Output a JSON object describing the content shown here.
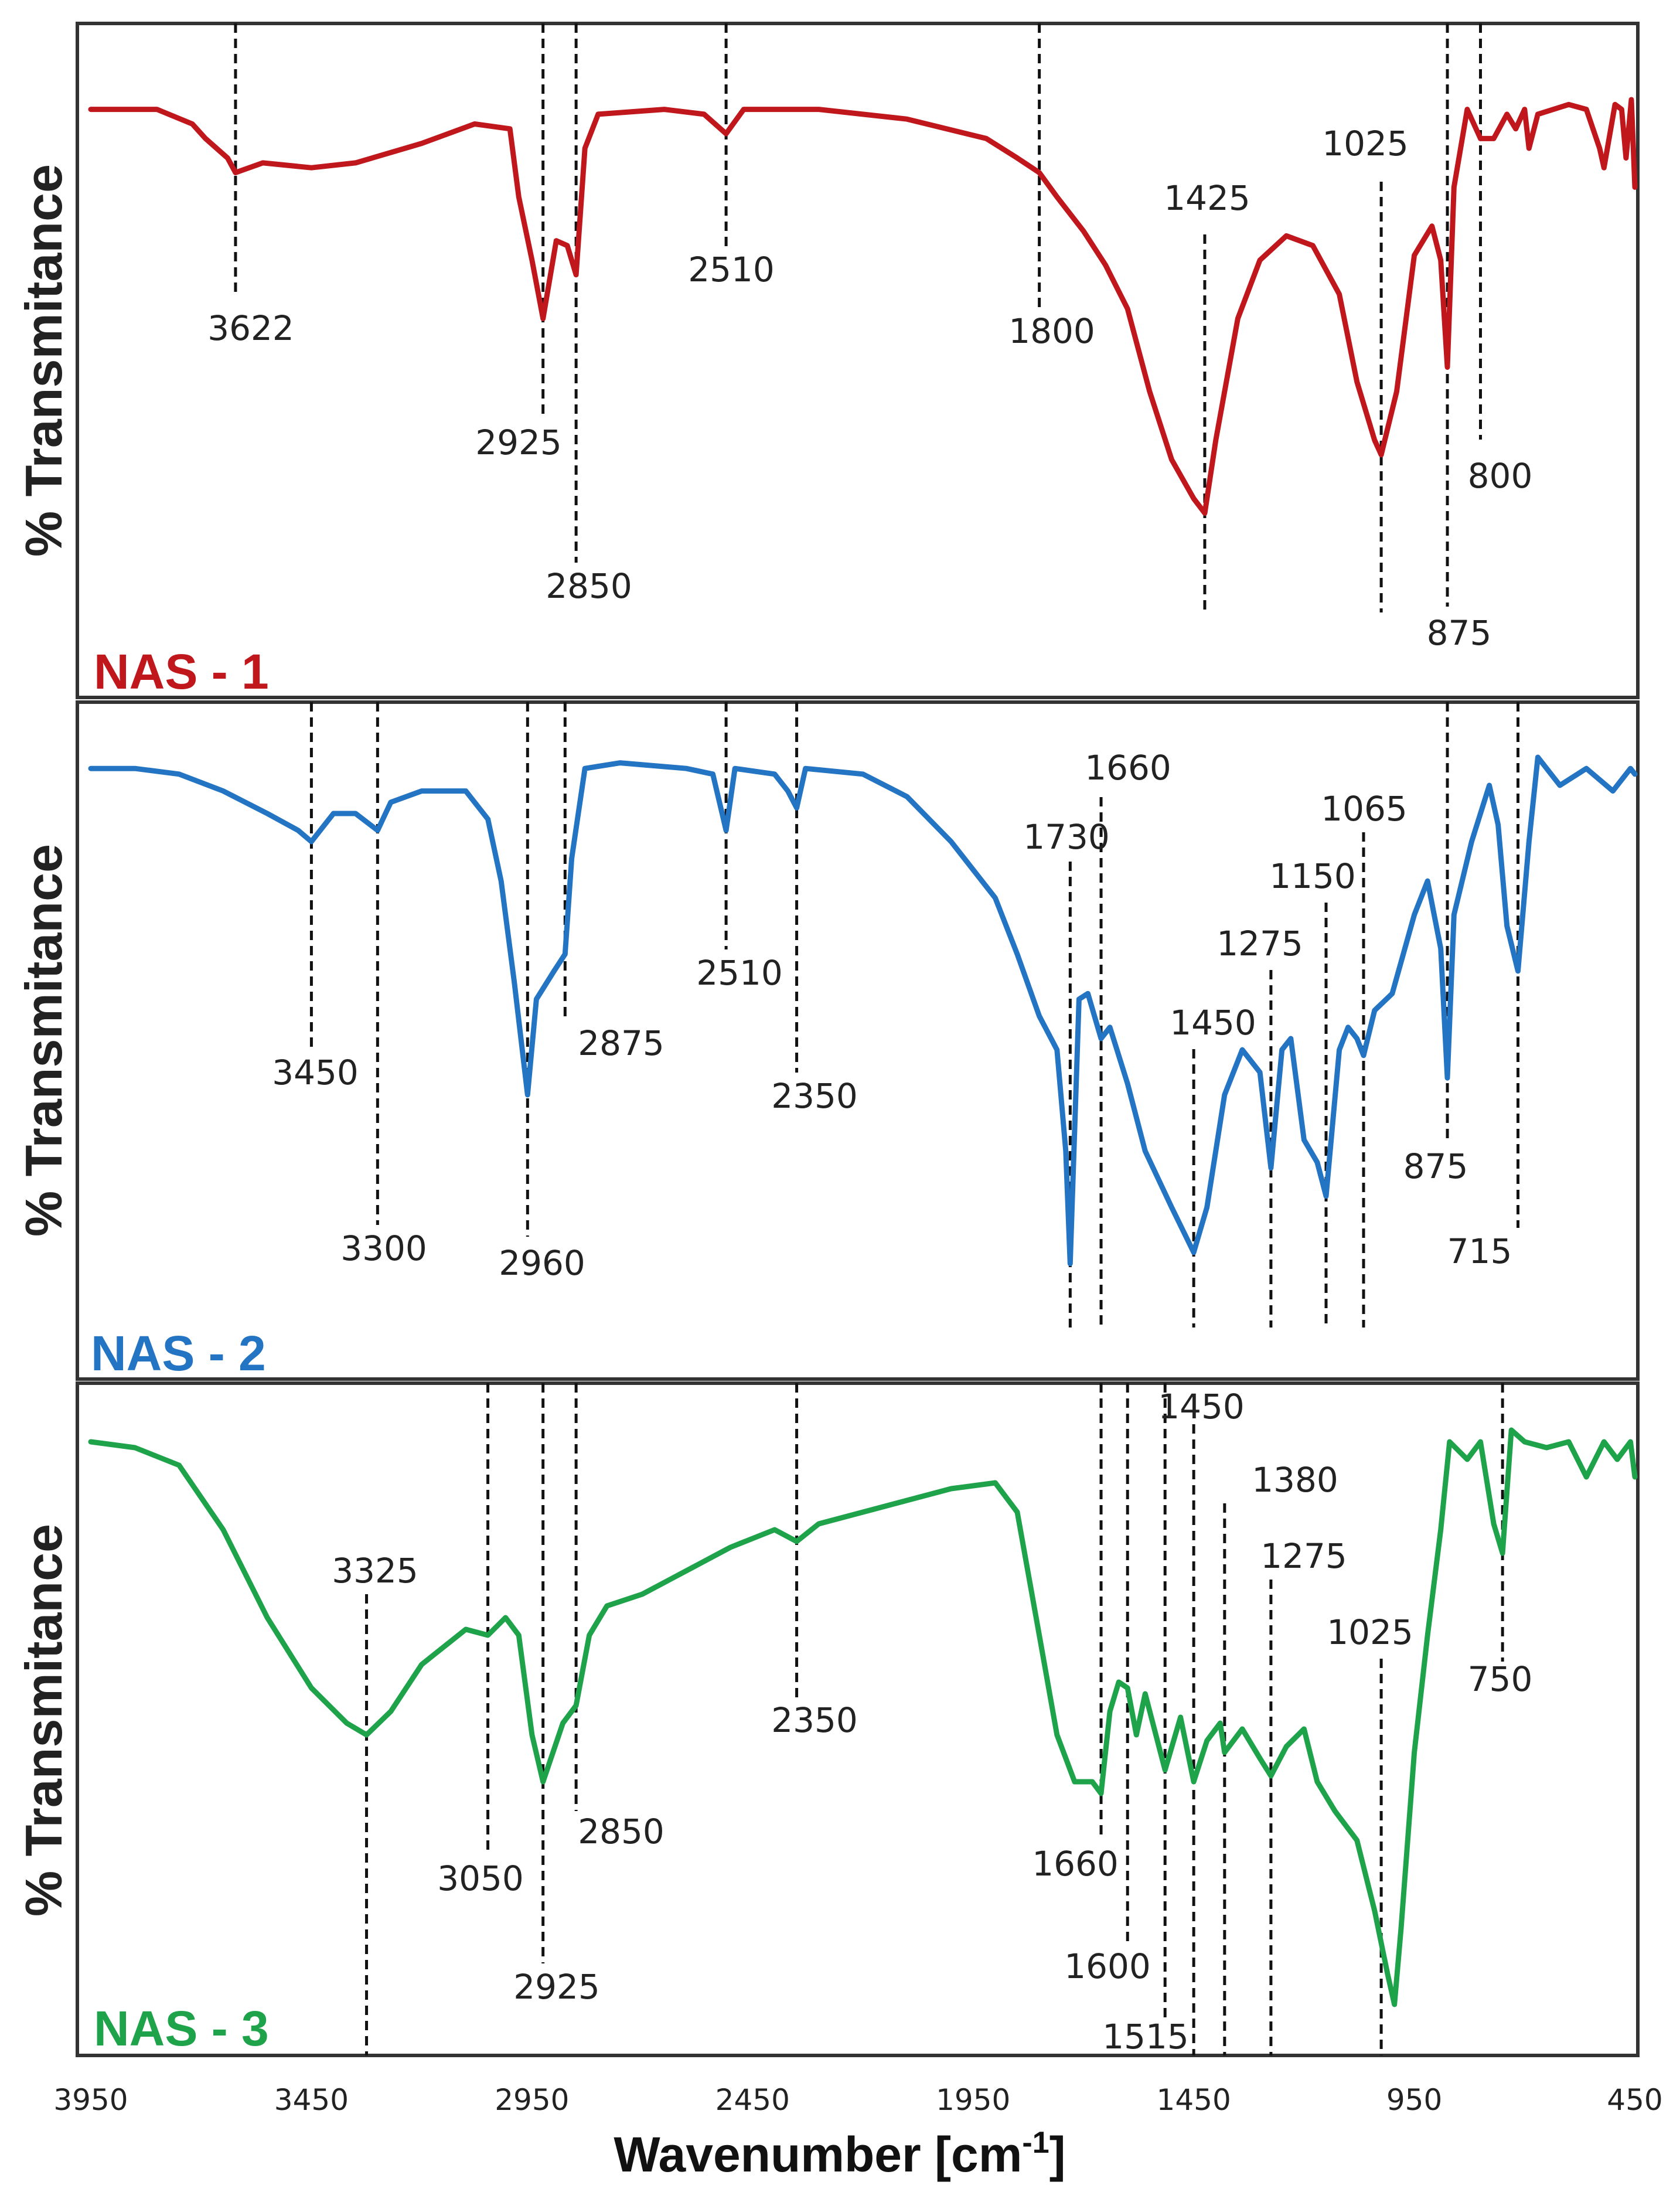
{
  "chart_data": {
    "type": "line",
    "xlabel": "Wavenumber [cm-1]",
    "xlabel_main": "Wavenumber [cm",
    "xlabel_sup": "-1",
    "xlabel_close": "]",
    "ylabel": "% Transmitance",
    "xlim": [
      3950,
      450
    ],
    "x_ticks": [
      "3950",
      "3450",
      "2950",
      "2450",
      "1950",
      "1450",
      "950",
      "450"
    ],
    "series": [
      {
        "name": "NAS - 1",
        "color": "#c0171c",
        "points": [
          [
            3950,
            0.02
          ],
          [
            3800,
            0.02
          ],
          [
            3720,
            0.05
          ],
          [
            3690,
            0.08
          ],
          [
            3640,
            0.12
          ],
          [
            3622,
            0.15
          ],
          [
            3560,
            0.13
          ],
          [
            3450,
            0.14
          ],
          [
            3350,
            0.13
          ],
          [
            3200,
            0.09
          ],
          [
            3080,
            0.05
          ],
          [
            3000,
            0.06
          ],
          [
            2980,
            0.2
          ],
          [
            2950,
            0.33
          ],
          [
            2925,
            0.45
          ],
          [
            2895,
            0.29
          ],
          [
            2870,
            0.3
          ],
          [
            2850,
            0.36
          ],
          [
            2830,
            0.1
          ],
          [
            2800,
            0.03
          ],
          [
            2650,
            0.02
          ],
          [
            2560,
            0.03
          ],
          [
            2510,
            0.07
          ],
          [
            2470,
            0.02
          ],
          [
            2300,
            0.02
          ],
          [
            2100,
            0.04
          ],
          [
            1920,
            0.08
          ],
          [
            1850,
            0.12
          ],
          [
            1800,
            0.15
          ],
          [
            1760,
            0.2
          ],
          [
            1700,
            0.27
          ],
          [
            1650,
            0.34
          ],
          [
            1600,
            0.43
          ],
          [
            1550,
            0.6
          ],
          [
            1500,
            0.74
          ],
          [
            1450,
            0.82
          ],
          [
            1425,
            0.85
          ],
          [
            1400,
            0.7
          ],
          [
            1350,
            0.45
          ],
          [
            1300,
            0.33
          ],
          [
            1240,
            0.28
          ],
          [
            1180,
            0.3
          ],
          [
            1120,
            0.4
          ],
          [
            1080,
            0.58
          ],
          [
            1040,
            0.7
          ],
          [
            1025,
            0.73
          ],
          [
            990,
            0.6
          ],
          [
            950,
            0.32
          ],
          [
            910,
            0.26
          ],
          [
            890,
            0.33
          ],
          [
            875,
            0.55
          ],
          [
            860,
            0.18
          ],
          [
            830,
            0.02
          ],
          [
            800,
            0.08
          ],
          [
            770,
            0.08
          ],
          [
            740,
            0.03
          ],
          [
            720,
            0.06
          ],
          [
            700,
            0.02
          ],
          [
            690,
            0.1
          ],
          [
            670,
            0.03
          ],
          [
            600,
            0.01
          ],
          [
            560,
            0.02
          ],
          [
            530,
            0.1
          ],
          [
            520,
            0.14
          ],
          [
            495,
            0.01
          ],
          [
            480,
            0.02
          ],
          [
            470,
            0.12
          ],
          [
            458,
            0.0
          ],
          [
            450,
            0.18
          ]
        ],
        "peaks": [
          "3622",
          "2925",
          "2850",
          "2510",
          "1800",
          "1425",
          "1025",
          "875",
          "800"
        ]
      },
      {
        "name": "NAS - 2",
        "color": "#2474c4",
        "points": [
          [
            3950,
            0.02
          ],
          [
            3850,
            0.02
          ],
          [
            3750,
            0.03
          ],
          [
            3650,
            0.06
          ],
          [
            3550,
            0.1
          ],
          [
            3480,
            0.13
          ],
          [
            3450,
            0.15
          ],
          [
            3400,
            0.1
          ],
          [
            3350,
            0.1
          ],
          [
            3300,
            0.13
          ],
          [
            3270,
            0.08
          ],
          [
            3200,
            0.06
          ],
          [
            3100,
            0.06
          ],
          [
            3050,
            0.11
          ],
          [
            3020,
            0.22
          ],
          [
            2990,
            0.4
          ],
          [
            2960,
            0.6
          ],
          [
            2940,
            0.43
          ],
          [
            2900,
            0.38
          ],
          [
            2875,
            0.35
          ],
          [
            2860,
            0.18
          ],
          [
            2830,
            0.02
          ],
          [
            2750,
            0.01
          ],
          [
            2600,
            0.02
          ],
          [
            2540,
            0.03
          ],
          [
            2510,
            0.13
          ],
          [
            2490,
            0.02
          ],
          [
            2400,
            0.03
          ],
          [
            2370,
            0.06
          ],
          [
            2350,
            0.09
          ],
          [
            2330,
            0.02
          ],
          [
            2200,
            0.03
          ],
          [
            2100,
            0.07
          ],
          [
            2000,
            0.15
          ],
          [
            1900,
            0.25
          ],
          [
            1850,
            0.35
          ],
          [
            1800,
            0.46
          ],
          [
            1760,
            0.52
          ],
          [
            1740,
            0.7
          ],
          [
            1730,
            0.9
          ],
          [
            1710,
            0.43
          ],
          [
            1690,
            0.42
          ],
          [
            1660,
            0.5
          ],
          [
            1640,
            0.48
          ],
          [
            1600,
            0.58
          ],
          [
            1560,
            0.7
          ],
          [
            1500,
            0.8
          ],
          [
            1450,
            0.88
          ],
          [
            1420,
            0.8
          ],
          [
            1380,
            0.6
          ],
          [
            1340,
            0.52
          ],
          [
            1300,
            0.56
          ],
          [
            1275,
            0.73
          ],
          [
            1250,
            0.52
          ],
          [
            1230,
            0.5
          ],
          [
            1200,
            0.68
          ],
          [
            1170,
            0.72
          ],
          [
            1150,
            0.78
          ],
          [
            1120,
            0.52
          ],
          [
            1100,
            0.48
          ],
          [
            1080,
            0.5
          ],
          [
            1065,
            0.53
          ],
          [
            1040,
            0.45
          ],
          [
            1000,
            0.42
          ],
          [
            950,
            0.28
          ],
          [
            920,
            0.22
          ],
          [
            890,
            0.34
          ],
          [
            875,
            0.57
          ],
          [
            860,
            0.28
          ],
          [
            820,
            0.15
          ],
          [
            780,
            0.05
          ],
          [
            760,
            0.12
          ],
          [
            740,
            0.3
          ],
          [
            715,
            0.38
          ],
          [
            690,
            0.15
          ],
          [
            670,
            0.0
          ],
          [
            620,
            0.05
          ],
          [
            560,
            0.02
          ],
          [
            500,
            0.06
          ],
          [
            460,
            0.02
          ],
          [
            450,
            0.03
          ]
        ],
        "peaks": [
          "3450",
          "3300",
          "2960",
          "2875",
          "2510",
          "2350",
          "1730",
          "1660",
          "1450",
          "1275",
          "1150",
          "1065",
          "875",
          "715"
        ]
      },
      {
        "name": "NAS - 3",
        "color": "#1ea34b",
        "points": [
          [
            3950,
            0.02
          ],
          [
            3850,
            0.03
          ],
          [
            3750,
            0.06
          ],
          [
            3650,
            0.17
          ],
          [
            3550,
            0.32
          ],
          [
            3450,
            0.44
          ],
          [
            3370,
            0.5
          ],
          [
            3325,
            0.52
          ],
          [
            3270,
            0.48
          ],
          [
            3200,
            0.4
          ],
          [
            3100,
            0.34
          ],
          [
            3050,
            0.35
          ],
          [
            3010,
            0.32
          ],
          [
            2980,
            0.35
          ],
          [
            2950,
            0.52
          ],
          [
            2925,
            0.6
          ],
          [
            2880,
            0.5
          ],
          [
            2850,
            0.47
          ],
          [
            2820,
            0.35
          ],
          [
            2780,
            0.3
          ],
          [
            2700,
            0.28
          ],
          [
            2600,
            0.24
          ],
          [
            2500,
            0.2
          ],
          [
            2400,
            0.17
          ],
          [
            2350,
            0.19
          ],
          [
            2300,
            0.16
          ],
          [
            2200,
            0.14
          ],
          [
            2100,
            0.12
          ],
          [
            2000,
            0.1
          ],
          [
            1900,
            0.09
          ],
          [
            1850,
            0.14
          ],
          [
            1800,
            0.35
          ],
          [
            1760,
            0.52
          ],
          [
            1720,
            0.6
          ],
          [
            1680,
            0.6
          ],
          [
            1660,
            0.62
          ],
          [
            1640,
            0.48
          ],
          [
            1620,
            0.43
          ],
          [
            1600,
            0.44
          ],
          [
            1580,
            0.52
          ],
          [
            1560,
            0.45
          ],
          [
            1515,
            0.58
          ],
          [
            1480,
            0.49
          ],
          [
            1450,
            0.6
          ],
          [
            1420,
            0.53
          ],
          [
            1390,
            0.5
          ],
          [
            1380,
            0.55
          ],
          [
            1340,
            0.51
          ],
          [
            1300,
            0.56
          ],
          [
            1275,
            0.59
          ],
          [
            1240,
            0.54
          ],
          [
            1200,
            0.51
          ],
          [
            1170,
            0.6
          ],
          [
            1130,
            0.65
          ],
          [
            1080,
            0.7
          ],
          [
            1040,
            0.82
          ],
          [
            1010,
            0.93
          ],
          [
            995,
            0.98
          ],
          [
            980,
            0.85
          ],
          [
            950,
            0.55
          ],
          [
            920,
            0.35
          ],
          [
            890,
            0.17
          ],
          [
            870,
            0.02
          ],
          [
            830,
            0.05
          ],
          [
            800,
            0.02
          ],
          [
            770,
            0.16
          ],
          [
            750,
            0.21
          ],
          [
            730,
            0.0
          ],
          [
            700,
            0.02
          ],
          [
            650,
            0.03
          ],
          [
            600,
            0.02
          ],
          [
            560,
            0.08
          ],
          [
            520,
            0.02
          ],
          [
            490,
            0.05
          ],
          [
            460,
            0.02
          ],
          [
            450,
            0.08
          ]
        ],
        "peaks": [
          "3325",
          "3050",
          "2925",
          "2850",
          "2350",
          "1660",
          "1600",
          "1515",
          "1450",
          "1380",
          "1275",
          "1025",
          "750"
        ]
      }
    ]
  }
}
